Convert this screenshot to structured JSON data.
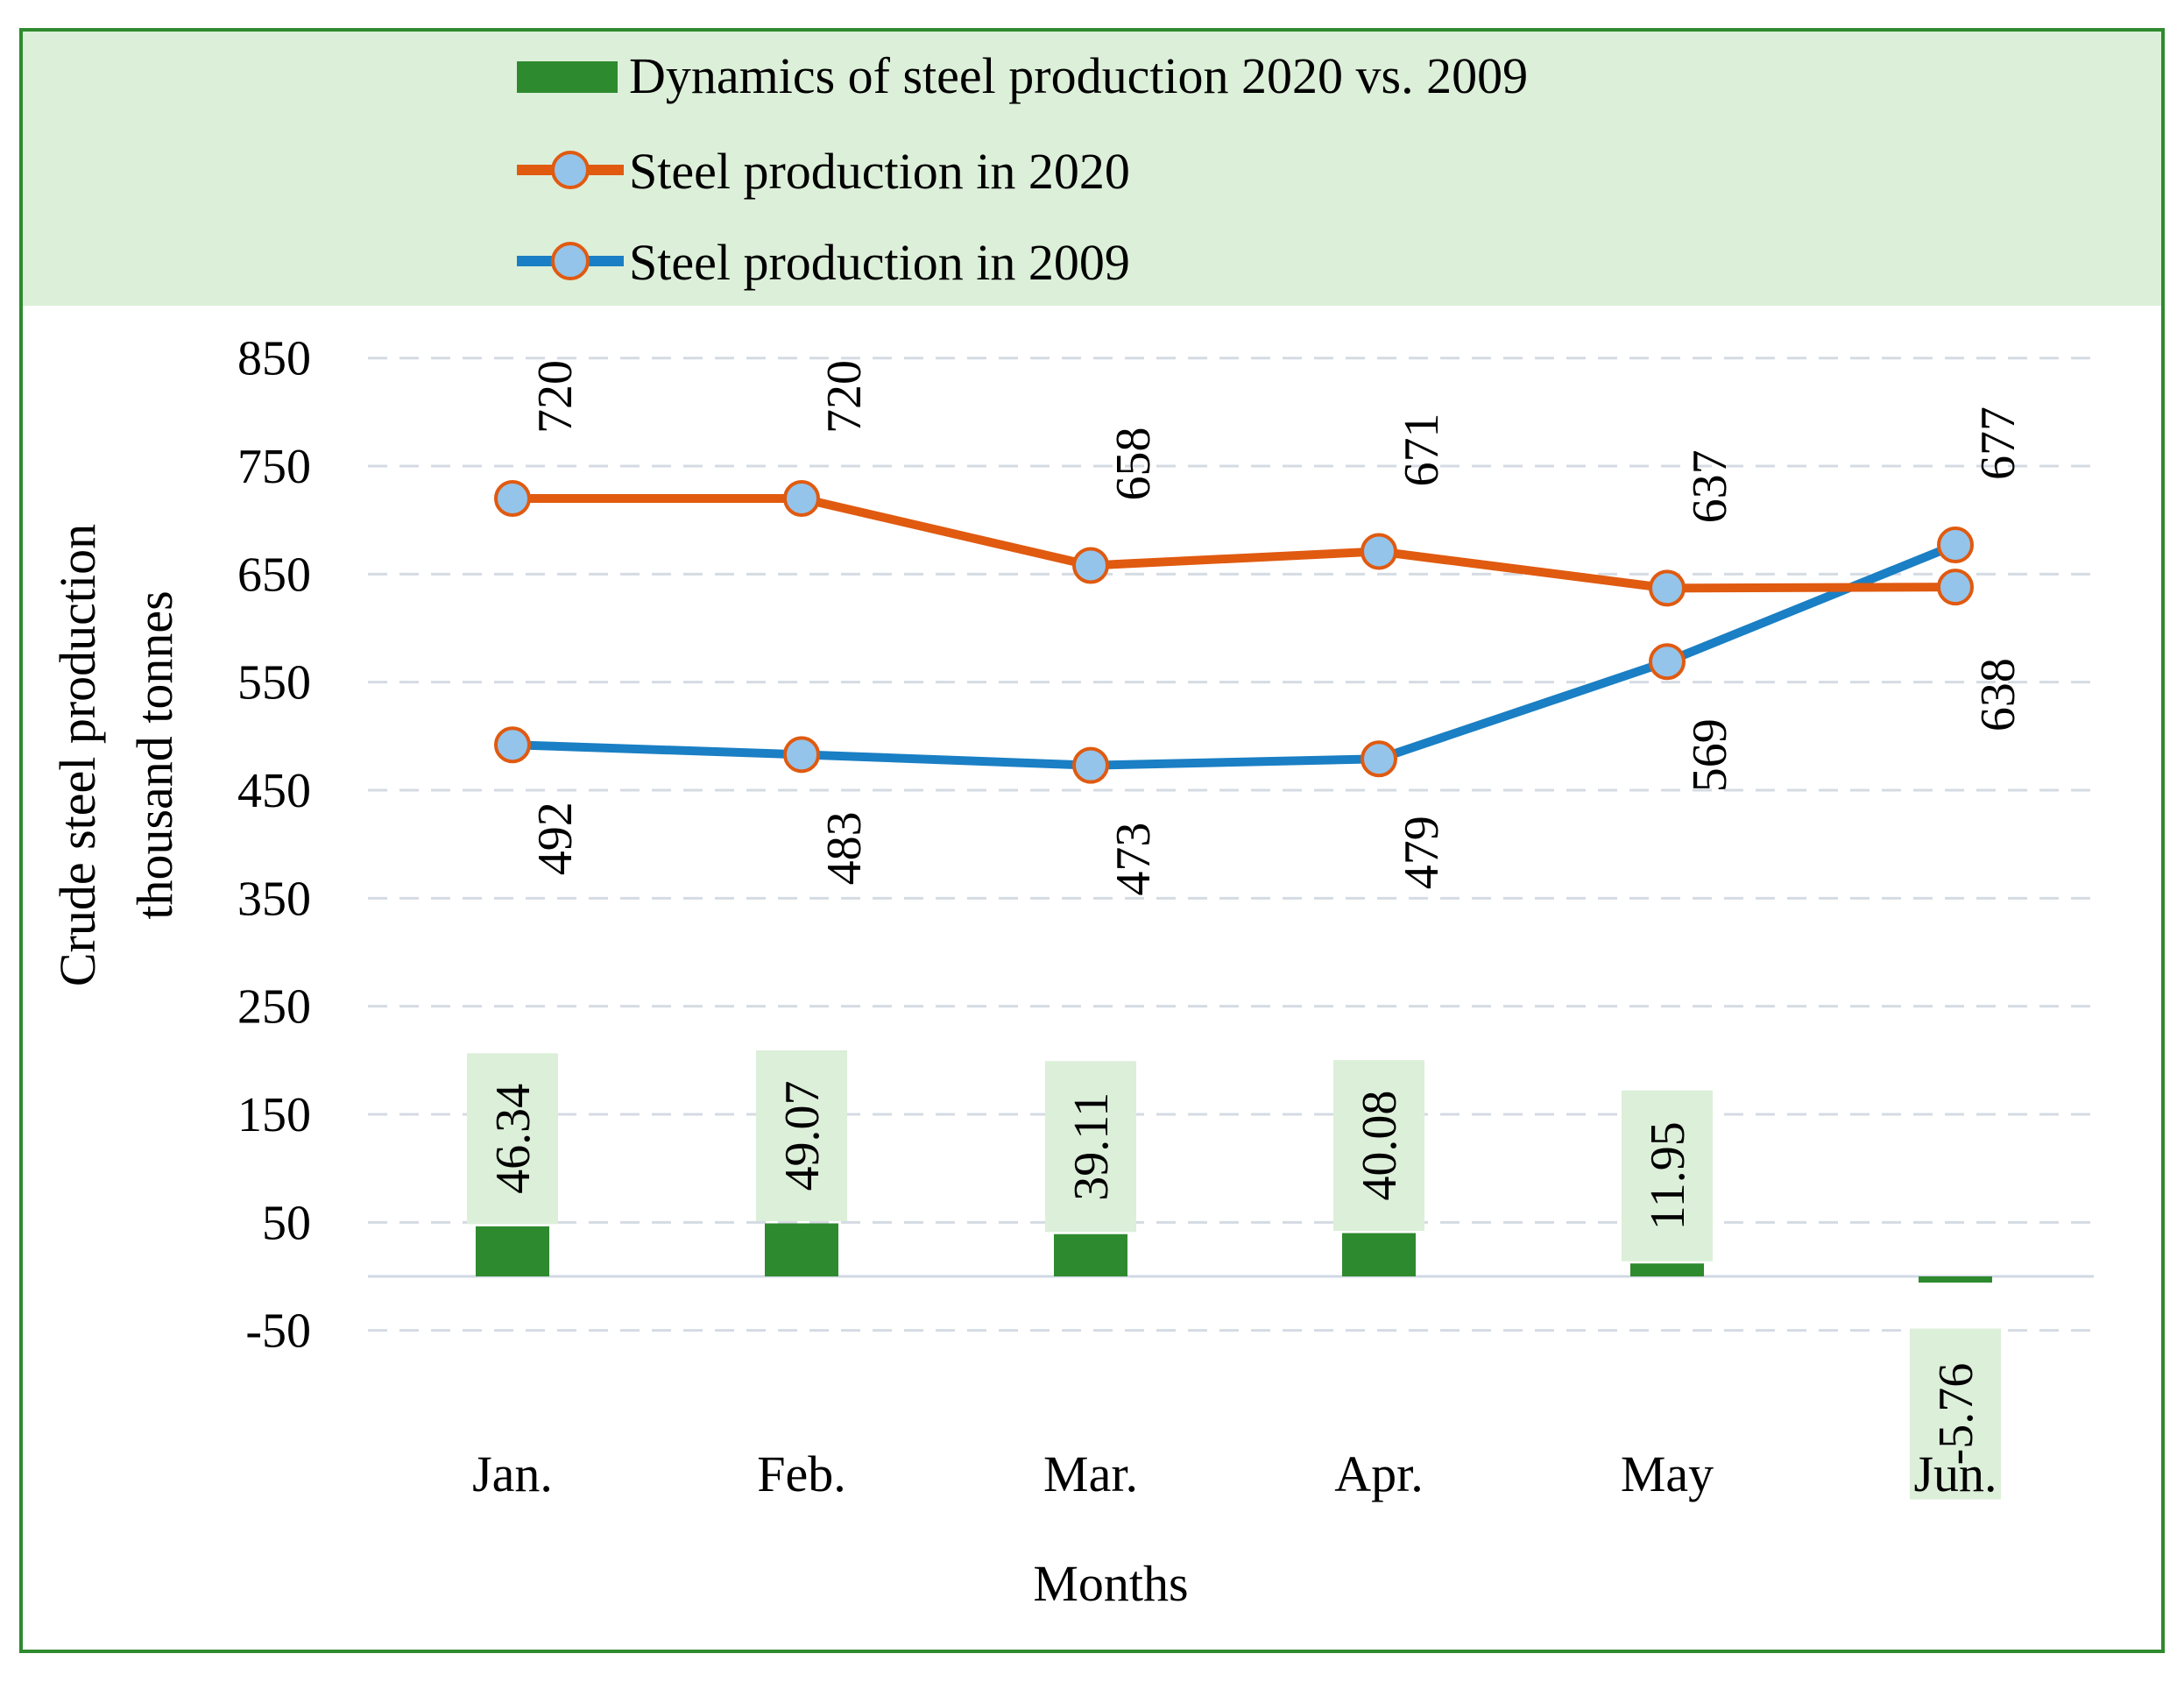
{
  "chart_data": {
    "type": "bar+line",
    "xlabel": "Months",
    "ylabel_line1": "Crude steel production",
    "ylabel_line2": "thousand tonnes",
    "categories": [
      "Jan.",
      "Feb.",
      "Mar.",
      "Apr.",
      "May",
      "Jun."
    ],
    "ylim": [
      -50,
      850
    ],
    "yticks": [
      -50,
      50,
      150,
      250,
      350,
      450,
      550,
      650,
      750,
      850
    ],
    "grid": true,
    "legend_position": "top",
    "series": [
      {
        "id": "dynamics",
        "name": "Dynamics of steel production 2020 vs. 2009",
        "kind": "bar",
        "color": "#2e8a2e",
        "values": [
          46.34,
          49.07,
          39.11,
          40.08,
          11.95,
          -5.76
        ],
        "labels": [
          "46.34",
          "49.07",
          "39.11",
          "40.08",
          "11.95",
          "-5.76"
        ]
      },
      {
        "id": "s2020",
        "name": "Steel production in 2020",
        "kind": "line",
        "color": "#e05a10",
        "values": [
          720,
          720,
          658,
          671,
          637,
          638
        ],
        "labels": [
          "720",
          "720",
          "658",
          "671",
          "637",
          "638"
        ]
      },
      {
        "id": "s2009",
        "name": "Steel production in 2009",
        "kind": "line",
        "color": "#1a7fc4",
        "values": [
          492,
          483,
          473,
          479,
          569,
          677
        ],
        "labels": [
          "492",
          "483",
          "473",
          "479",
          "569",
          "677"
        ]
      }
    ],
    "colors": {
      "frame": "#2e8a2e",
      "legend_bg": "#dcefd9",
      "label_bg": "#dcefd9",
      "marker_fill": "#94c4ea",
      "grid": "#d5dbe3"
    }
  }
}
